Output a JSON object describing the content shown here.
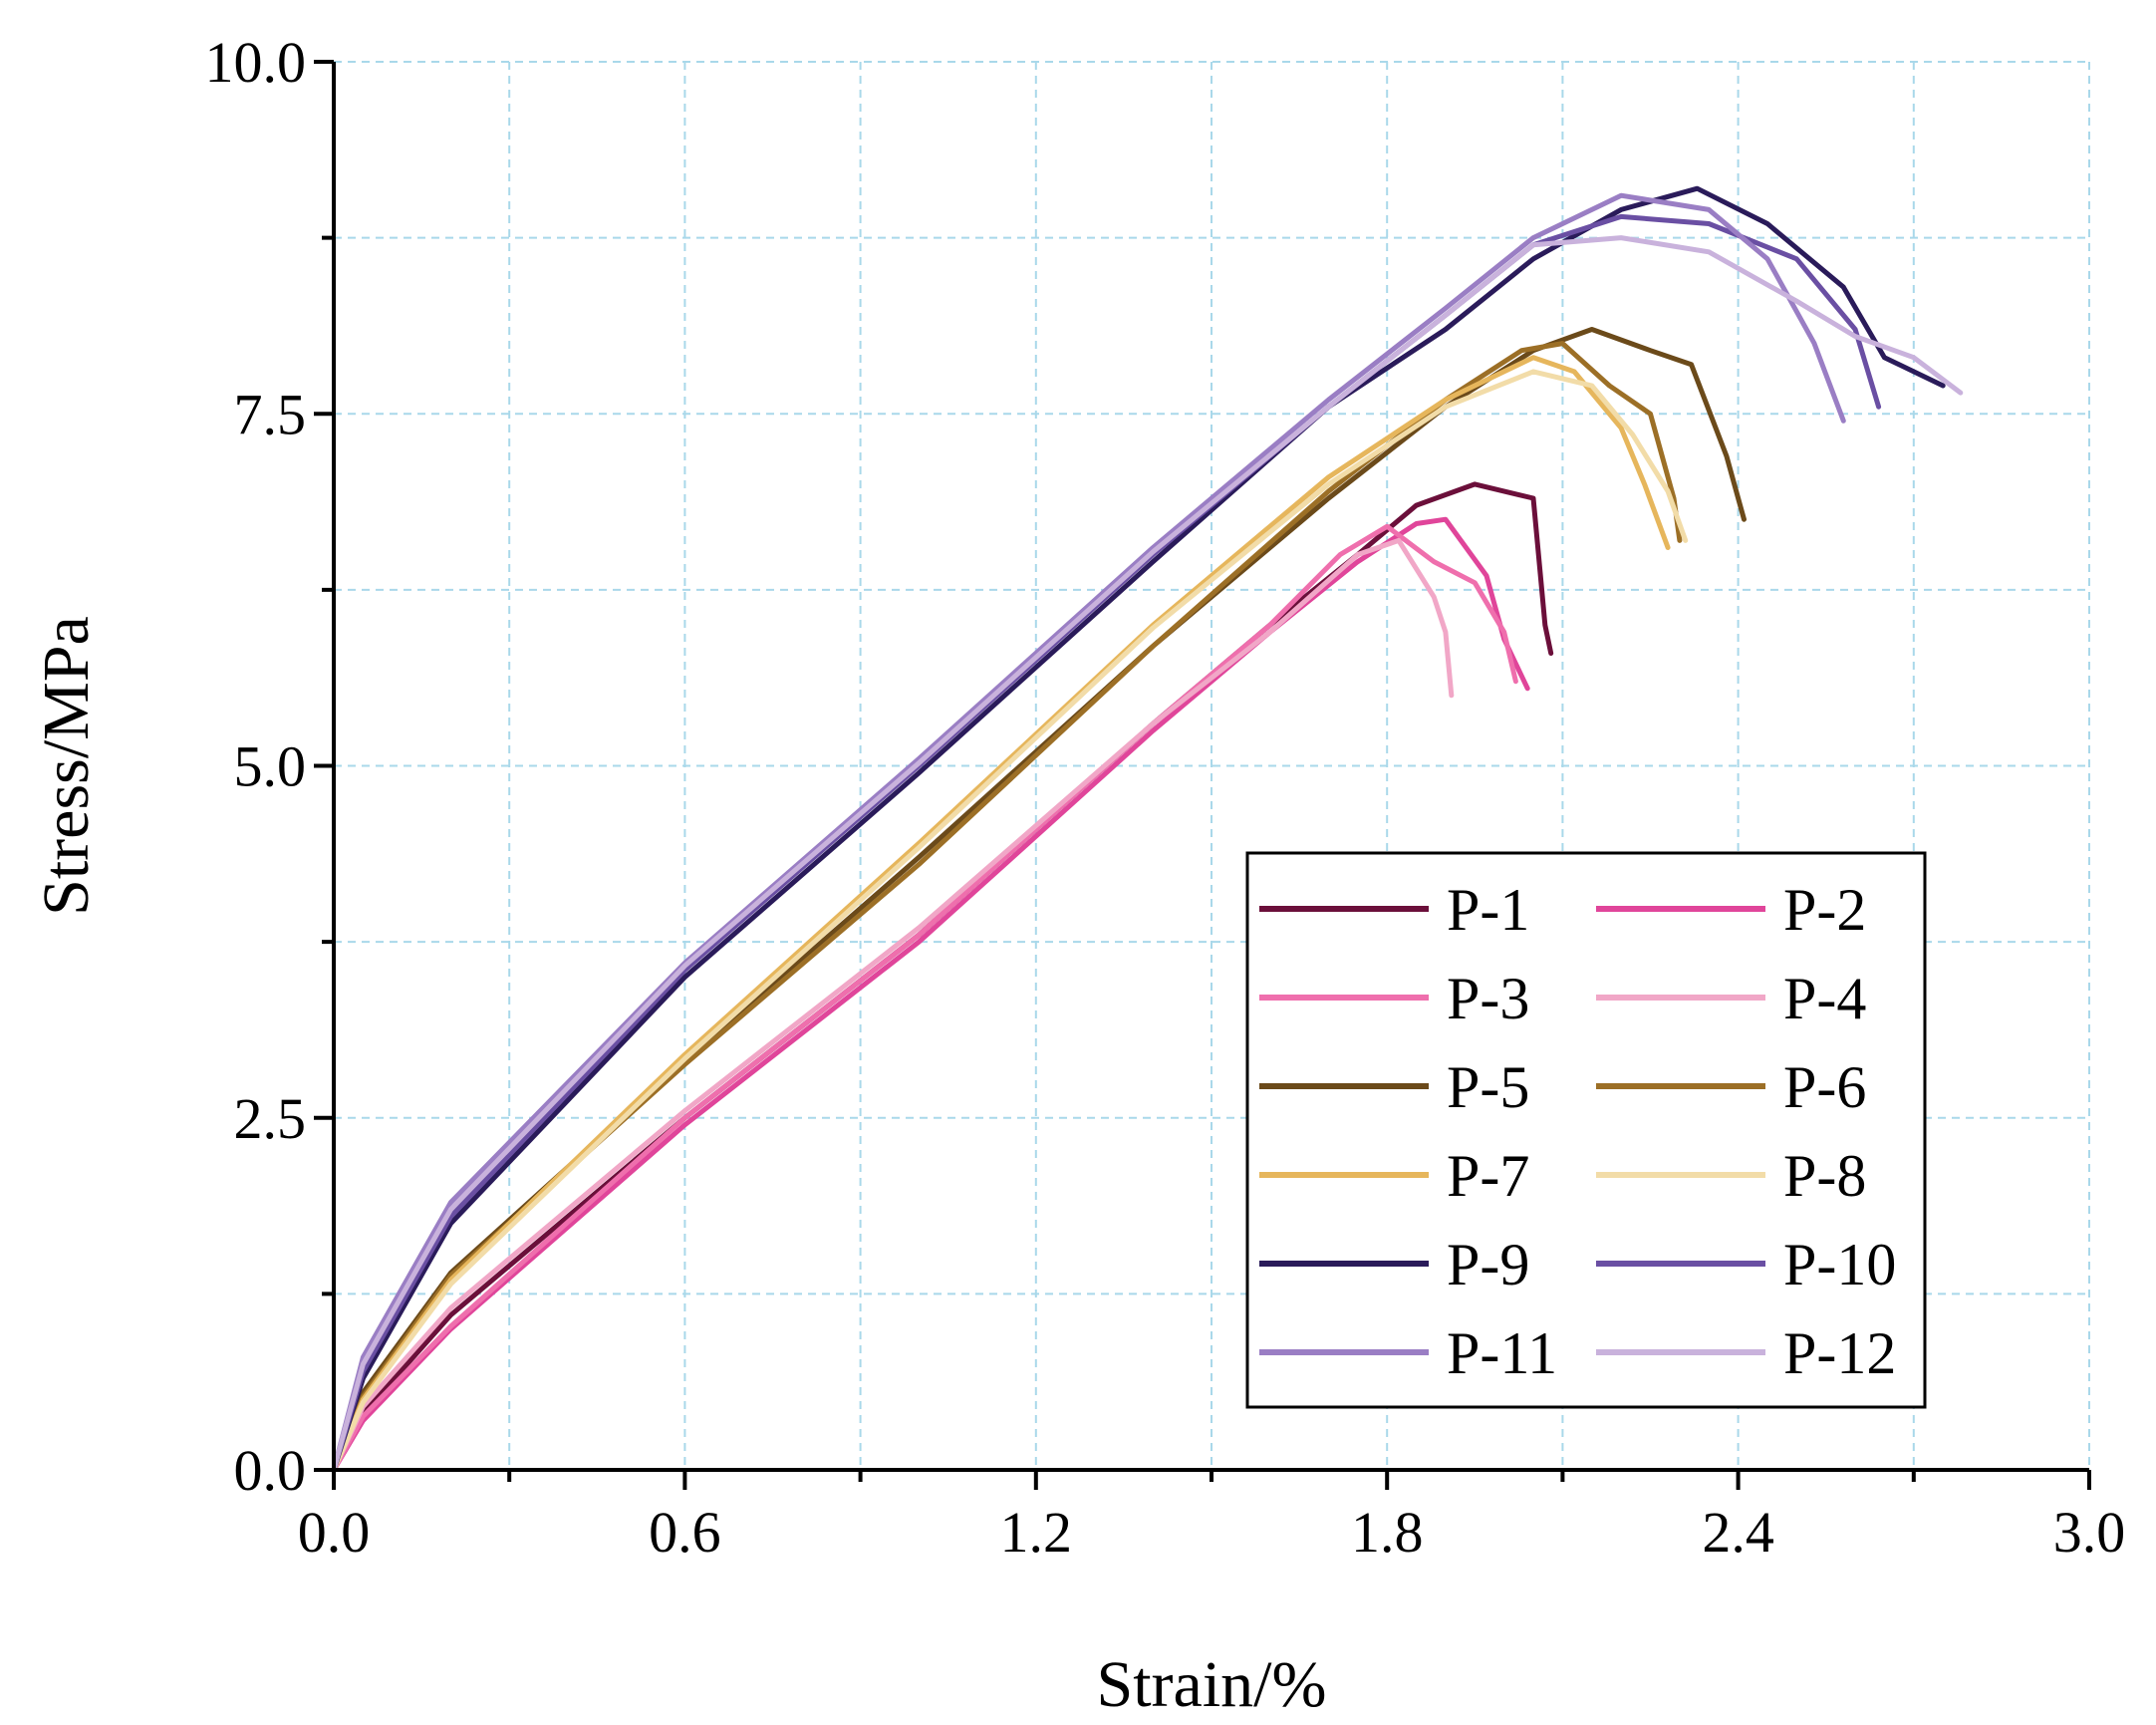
{
  "chart_data": {
    "type": "line",
    "title": "",
    "xlabel": "Strain/%",
    "ylabel": "Stress/MPa",
    "xlim": [
      0,
      3.0
    ],
    "ylim": [
      0,
      10.0
    ],
    "x_ticks": [
      "0.0",
      "0.6",
      "1.2",
      "1.8",
      "2.4",
      "3.0"
    ],
    "y_ticks": [
      "0.0",
      "2.5",
      "5.0",
      "7.5",
      "10.0"
    ],
    "grid": true,
    "legend_position": "bottom-right",
    "series": [
      {
        "name": "P-1",
        "color": "#6b0f3a",
        "points": [
          [
            0,
            0
          ],
          [
            0.05,
            0.4
          ],
          [
            0.2,
            1.1
          ],
          [
            0.6,
            2.5
          ],
          [
            1.0,
            3.8
          ],
          [
            1.4,
            5.3
          ],
          [
            1.6,
            6.0
          ],
          [
            1.75,
            6.5
          ],
          [
            1.85,
            6.85
          ],
          [
            1.95,
            7.0
          ],
          [
            2.05,
            6.9
          ],
          [
            2.07,
            6.0
          ],
          [
            2.08,
            5.8
          ]
        ]
      },
      {
        "name": "P-2",
        "color": "#e0459a",
        "points": [
          [
            0,
            0
          ],
          [
            0.05,
            0.35
          ],
          [
            0.2,
            1.0
          ],
          [
            0.6,
            2.45
          ],
          [
            1.0,
            3.75
          ],
          [
            1.4,
            5.25
          ],
          [
            1.6,
            5.95
          ],
          [
            1.75,
            6.45
          ],
          [
            1.85,
            6.72
          ],
          [
            1.9,
            6.75
          ],
          [
            1.97,
            6.35
          ],
          [
            2.0,
            5.9
          ],
          [
            2.04,
            5.55
          ]
        ]
      },
      {
        "name": "P-3",
        "color": "#ef6fad",
        "points": [
          [
            0,
            0
          ],
          [
            0.05,
            0.38
          ],
          [
            0.2,
            1.02
          ],
          [
            0.6,
            2.5
          ],
          [
            1.0,
            3.8
          ],
          [
            1.4,
            5.3
          ],
          [
            1.6,
            6.0
          ],
          [
            1.72,
            6.5
          ],
          [
            1.8,
            6.7
          ],
          [
            1.88,
            6.45
          ],
          [
            1.95,
            6.3
          ],
          [
            2.0,
            5.95
          ],
          [
            2.02,
            5.6
          ]
        ]
      },
      {
        "name": "P-4",
        "color": "#f1a7c7",
        "points": [
          [
            0,
            0
          ],
          [
            0.05,
            0.45
          ],
          [
            0.2,
            1.15
          ],
          [
            0.6,
            2.55
          ],
          [
            1.0,
            3.85
          ],
          [
            1.4,
            5.3
          ],
          [
            1.6,
            5.95
          ],
          [
            1.75,
            6.5
          ],
          [
            1.82,
            6.6
          ],
          [
            1.88,
            6.2
          ],
          [
            1.9,
            5.95
          ],
          [
            1.91,
            5.5
          ]
        ]
      },
      {
        "name": "P-5",
        "color": "#6b4a1a",
        "points": [
          [
            0,
            0
          ],
          [
            0.05,
            0.55
          ],
          [
            0.2,
            1.4
          ],
          [
            0.6,
            2.9
          ],
          [
            1.0,
            4.35
          ],
          [
            1.4,
            5.85
          ],
          [
            1.7,
            6.9
          ],
          [
            1.9,
            7.55
          ],
          [
            2.05,
            7.95
          ],
          [
            2.15,
            8.1
          ],
          [
            2.25,
            7.95
          ],
          [
            2.32,
            7.85
          ],
          [
            2.38,
            7.2
          ],
          [
            2.41,
            6.75
          ]
        ]
      },
      {
        "name": "P-6",
        "color": "#9c6f26",
        "points": [
          [
            0,
            0
          ],
          [
            0.05,
            0.52
          ],
          [
            0.2,
            1.38
          ],
          [
            0.6,
            2.88
          ],
          [
            1.0,
            4.3
          ],
          [
            1.4,
            5.85
          ],
          [
            1.7,
            6.95
          ],
          [
            1.9,
            7.6
          ],
          [
            2.03,
            7.95
          ],
          [
            2.1,
            8.0
          ],
          [
            2.18,
            7.7
          ],
          [
            2.25,
            7.5
          ],
          [
            2.29,
            6.9
          ],
          [
            2.3,
            6.6
          ]
        ]
      },
      {
        "name": "P-7",
        "color": "#e6b65c",
        "points": [
          [
            0,
            0
          ],
          [
            0.05,
            0.5
          ],
          [
            0.2,
            1.35
          ],
          [
            0.6,
            2.95
          ],
          [
            1.0,
            4.45
          ],
          [
            1.4,
            6.0
          ],
          [
            1.7,
            7.05
          ],
          [
            1.9,
            7.6
          ],
          [
            2.05,
            7.9
          ],
          [
            2.12,
            7.8
          ],
          [
            2.2,
            7.4
          ],
          [
            2.24,
            7.0
          ],
          [
            2.28,
            6.55
          ]
        ]
      },
      {
        "name": "P-8",
        "color": "#f2dca8",
        "points": [
          [
            0,
            0
          ],
          [
            0.05,
            0.48
          ],
          [
            0.2,
            1.32
          ],
          [
            0.6,
            2.92
          ],
          [
            1.0,
            4.42
          ],
          [
            1.4,
            5.98
          ],
          [
            1.7,
            7.0
          ],
          [
            1.9,
            7.55
          ],
          [
            2.05,
            7.8
          ],
          [
            2.15,
            7.7
          ],
          [
            2.22,
            7.35
          ],
          [
            2.28,
            6.95
          ],
          [
            2.31,
            6.6
          ]
        ]
      },
      {
        "name": "P-9",
        "color": "#2a1b5a",
        "points": [
          [
            0,
            0
          ],
          [
            0.05,
            0.65
          ],
          [
            0.2,
            1.75
          ],
          [
            0.6,
            3.5
          ],
          [
            1.0,
            4.95
          ],
          [
            1.4,
            6.45
          ],
          [
            1.7,
            7.55
          ],
          [
            1.9,
            8.1
          ],
          [
            2.05,
            8.6
          ],
          [
            2.2,
            8.95
          ],
          [
            2.33,
            9.1
          ],
          [
            2.45,
            8.85
          ],
          [
            2.58,
            8.4
          ],
          [
            2.65,
            7.9
          ],
          [
            2.75,
            7.7
          ]
        ]
      },
      {
        "name": "P-10",
        "color": "#6a4fa3",
        "points": [
          [
            0,
            0
          ],
          [
            0.05,
            0.7
          ],
          [
            0.2,
            1.8
          ],
          [
            0.6,
            3.55
          ],
          [
            1.0,
            5.0
          ],
          [
            1.4,
            6.5
          ],
          [
            1.7,
            7.55
          ],
          [
            1.9,
            8.2
          ],
          [
            2.05,
            8.7
          ],
          [
            2.2,
            8.9
          ],
          [
            2.35,
            8.85
          ],
          [
            2.5,
            8.6
          ],
          [
            2.6,
            8.1
          ],
          [
            2.64,
            7.55
          ]
        ]
      },
      {
        "name": "P-11",
        "color": "#9a7ec4",
        "points": [
          [
            0,
            0
          ],
          [
            0.05,
            0.8
          ],
          [
            0.2,
            1.9
          ],
          [
            0.6,
            3.6
          ],
          [
            1.0,
            5.05
          ],
          [
            1.4,
            6.55
          ],
          [
            1.7,
            7.6
          ],
          [
            1.9,
            8.25
          ],
          [
            2.05,
            8.75
          ],
          [
            2.2,
            9.05
          ],
          [
            2.35,
            8.95
          ],
          [
            2.45,
            8.6
          ],
          [
            2.53,
            8.0
          ],
          [
            2.58,
            7.45
          ]
        ]
      },
      {
        "name": "P-12",
        "color": "#c9b2dc",
        "points": [
          [
            0,
            0
          ],
          [
            0.05,
            0.75
          ],
          [
            0.2,
            1.85
          ],
          [
            0.6,
            3.58
          ],
          [
            1.0,
            5.02
          ],
          [
            1.4,
            6.52
          ],
          [
            1.7,
            7.55
          ],
          [
            1.9,
            8.2
          ],
          [
            2.05,
            8.7
          ],
          [
            2.2,
            8.75
          ],
          [
            2.35,
            8.65
          ],
          [
            2.5,
            8.3
          ],
          [
            2.6,
            8.05
          ],
          [
            2.7,
            7.9
          ],
          [
            2.78,
            7.65
          ]
        ]
      }
    ]
  }
}
